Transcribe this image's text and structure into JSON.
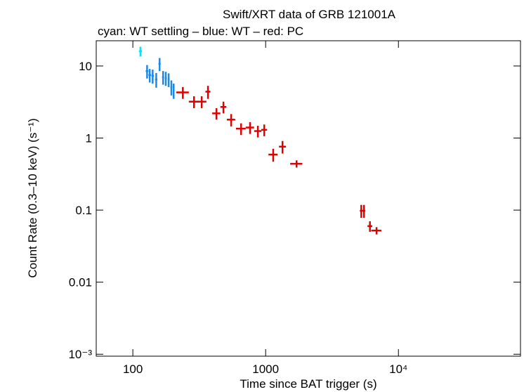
{
  "chart_data": {
    "type": "errorbar-scatter",
    "title": "Swift/XRT data of GRB 121001A",
    "subtitle": "cyan: WT settling – blue: WT – red: PC",
    "x_label": "Time since BAT trigger (s)",
    "y_label": "Count Rate (0.3–10 keV) (s⁻¹)",
    "x_scale": "log",
    "y_scale": "log",
    "xlim": [
      53,
      83000
    ],
    "ylim": [
      0.00094,
      22.4
    ],
    "xticks": [
      100,
      1000,
      {
        "value": 10000,
        "label": "10⁴"
      }
    ],
    "yticks": [
      {
        "value": 0.001,
        "label": "10⁻³"
      },
      0.01,
      0.1,
      1,
      10
    ],
    "series": [
      {
        "color": "#00e5ff",
        "x": [
          114
        ],
        "xerr": [
          3
        ],
        "values": [
          16
        ],
        "yerr": [
          2.5
        ]
      },
      {
        "color": "#1e88e5",
        "x": [
          128,
          134,
          141,
          150,
          159,
          169,
          177,
          186,
          195,
          203
        ],
        "xerr": [
          3,
          3,
          3,
          3,
          3,
          3,
          3,
          3,
          3,
          3
        ],
        "values": [
          8.5,
          7.5,
          7.3,
          6.5,
          10.7,
          7,
          6.8,
          6.5,
          5.1,
          4.6
        ],
        "yerr": [
          1.8,
          1.6,
          1.6,
          1.5,
          2.2,
          1.5,
          1.5,
          1.4,
          1.2,
          1.1
        ]
      },
      {
        "color": "#e00000",
        "x": [
          238,
          289,
          330,
          368,
          426,
          481,
          550,
          653,
          763,
          874,
          976,
          1140,
          1340,
          1710,
          5250,
          5500,
          6100,
          6840
        ],
        "xerr": [
          26,
          25,
          28,
          16,
          30,
          25,
          40,
          55,
          55,
          55,
          50,
          90,
          80,
          180,
          130,
          130,
          250,
          600
        ],
        "values": [
          4.3,
          3.2,
          3.2,
          4.4,
          2.2,
          2.7,
          1.8,
          1.35,
          1.4,
          1.25,
          1.3,
          0.59,
          0.76,
          0.44,
          0.098,
          0.098,
          0.06,
          0.052
        ],
        "yerr": [
          0.8,
          0.6,
          0.6,
          0.9,
          0.4,
          0.5,
          0.35,
          0.25,
          0.26,
          0.23,
          0.24,
          0.12,
          0.15,
          0.05,
          0.02,
          0.02,
          0.01,
          0.006
        ]
      }
    ]
  }
}
